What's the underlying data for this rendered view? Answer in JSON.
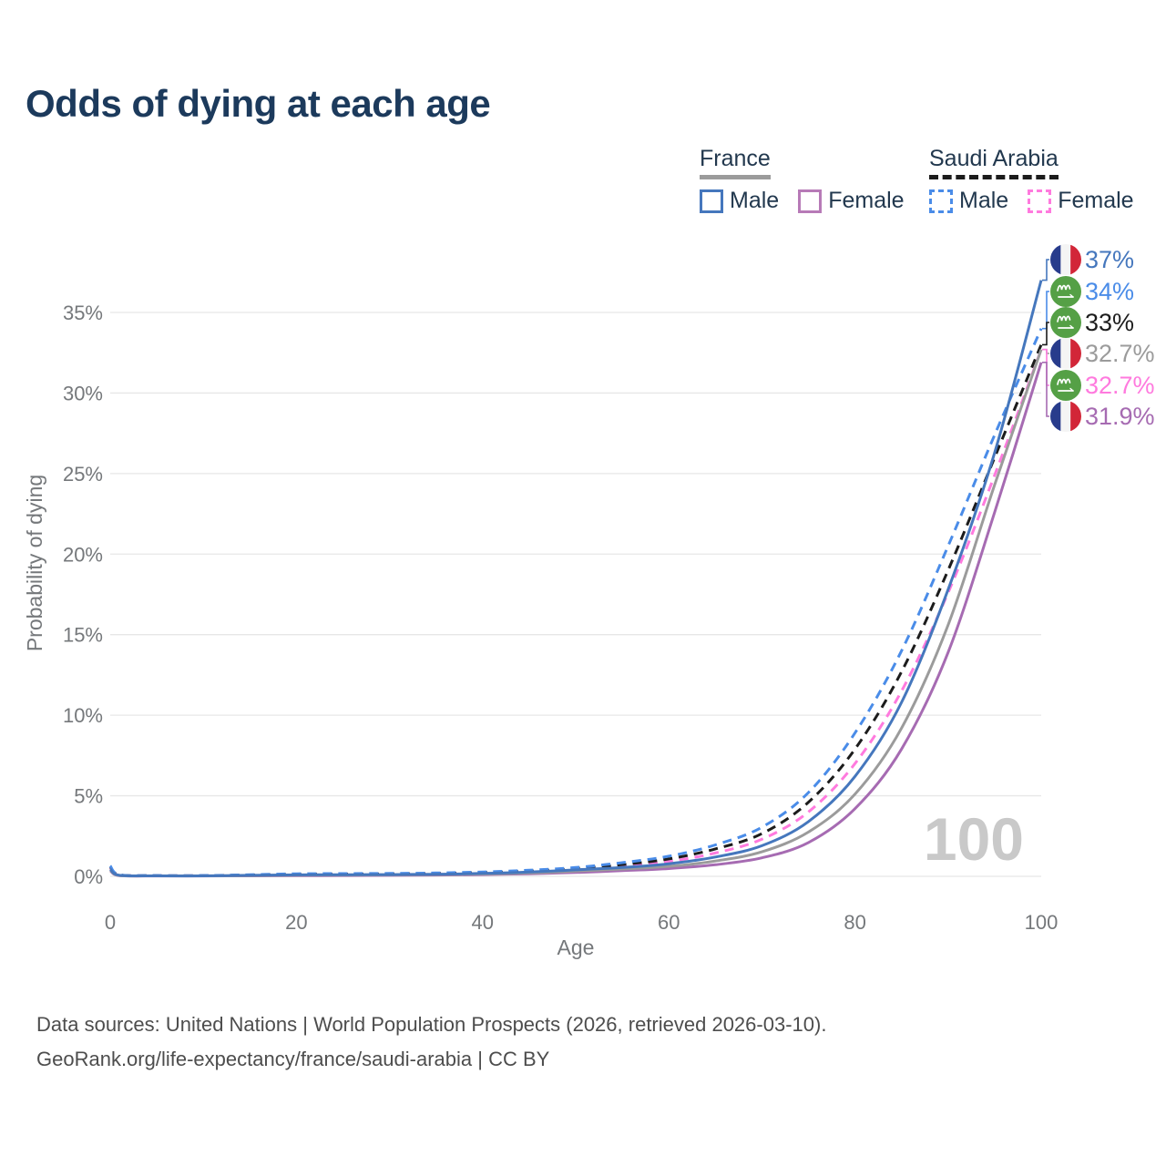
{
  "title": {
    "text": "Odds of dying at each age",
    "color": "#1c3a5c"
  },
  "legend": {
    "groups": [
      {
        "name": "France",
        "line_color": "#9b9b9b",
        "line_dashed": false,
        "items": [
          {
            "label": "Male",
            "color": "#4577bd",
            "dashed": false
          },
          {
            "label": "Female",
            "color": "#b77ab7",
            "dashed": false
          }
        ]
      },
      {
        "name": "Saudi Arabia",
        "line_color": "#1c1c1c",
        "line_dashed": true,
        "items": [
          {
            "label": "Male",
            "color": "#4a8ce8",
            "dashed": true
          },
          {
            "label": "Female",
            "color": "#ff7ade",
            "dashed": true
          }
        ]
      }
    ]
  },
  "chart_data": {
    "type": "line",
    "title": "Odds of dying at each age",
    "xlabel": "Age",
    "ylabel": "Probability of dying",
    "xlim": [
      0,
      100
    ],
    "ylim": [
      0,
      39
    ],
    "unit": "%",
    "grid": "horizontal",
    "legend_position": "top-right",
    "watermark": "100",
    "x_ticks": [
      0,
      20,
      40,
      60,
      80,
      100
    ],
    "y_ticks": [
      {
        "value": 0,
        "label": "0%"
      },
      {
        "value": 5,
        "label": "5%"
      },
      {
        "value": 10,
        "label": "10%"
      },
      {
        "value": 15,
        "label": "15%"
      },
      {
        "value": 20,
        "label": "20%"
      },
      {
        "value": 25,
        "label": "25%"
      },
      {
        "value": 30,
        "label": "30%"
      },
      {
        "value": 35,
        "label": "35%"
      }
    ],
    "style": {
      "grid": "#e7e7e7",
      "tick_text": "#75787b",
      "watermark": "#c9c9c9"
    },
    "ages": [
      0,
      1,
      5,
      10,
      15,
      20,
      25,
      30,
      35,
      40,
      45,
      50,
      55,
      60,
      65,
      70,
      75,
      80,
      85,
      90,
      95,
      100
    ],
    "series": [
      {
        "id": "saudi-arabia-female",
        "name": "Saudi Arabia Female",
        "country": "Saudi Arabia",
        "sex": "Female",
        "color": "#ff7ade",
        "dashed": true,
        "flag": "sa",
        "end_label": "32.7%",
        "end_value": 32.7,
        "label_color": "#ff7ade",
        "slot": 4,
        "values": [
          0.55,
          0.08,
          0.04,
          0.04,
          0.06,
          0.09,
          0.11,
          0.12,
          0.15,
          0.19,
          0.27,
          0.4,
          0.6,
          0.92,
          1.45,
          2.3,
          4.0,
          7.0,
          11.5,
          17.6,
          24.9,
          32.7
        ]
      },
      {
        "id": "saudi-arabia-total",
        "name": "Saudi Arabia Both sexes",
        "country": "Saudi Arabia",
        "sex": "Both",
        "color": "#1c1c1c",
        "dashed": true,
        "flag": "sa",
        "end_label": "33%",
        "end_value": 33.0,
        "label_color": "#1c1c1c",
        "slot": 2,
        "values": [
          0.6,
          0.09,
          0.04,
          0.04,
          0.08,
          0.12,
          0.14,
          0.15,
          0.18,
          0.23,
          0.32,
          0.48,
          0.73,
          1.08,
          1.7,
          2.65,
          4.6,
          7.9,
          12.7,
          19.0,
          26.0,
          33.0
        ]
      },
      {
        "id": "saudi-arabia-male",
        "name": "Saudi Arabia Male",
        "country": "Saudi Arabia",
        "sex": "Male",
        "color": "#4a8ce8",
        "dashed": true,
        "flag": "sa",
        "end_label": "34%",
        "end_value": 34.0,
        "label_color": "#4a8ce8",
        "slot": 1,
        "values": [
          0.65,
          0.1,
          0.05,
          0.05,
          0.1,
          0.16,
          0.17,
          0.18,
          0.21,
          0.27,
          0.38,
          0.55,
          0.85,
          1.25,
          1.95,
          3.05,
          5.2,
          8.9,
          14.0,
          20.5,
          27.4,
          34.0
        ]
      },
      {
        "id": "france-female",
        "name": "France Female",
        "country": "France",
        "sex": "Female",
        "color": "#a66bb2",
        "dashed": false,
        "flag": "fr",
        "end_label": "31.9%",
        "end_value": 31.9,
        "label_color": "#a66bb2",
        "slot": 5,
        "values": [
          0.35,
          0.04,
          0.02,
          0.02,
          0.03,
          0.04,
          0.05,
          0.06,
          0.08,
          0.11,
          0.16,
          0.24,
          0.35,
          0.48,
          0.72,
          1.15,
          2.1,
          4.2,
          7.9,
          13.9,
          22.6,
          31.9
        ]
      },
      {
        "id": "france-total",
        "name": "France Both sexes",
        "country": "France",
        "sex": "Both",
        "color": "#9b9b9b",
        "dashed": false,
        "flag": "fr",
        "end_label": "32.7%",
        "end_value": 32.7,
        "label_color": "#9b9b9b",
        "slot": 3,
        "values": [
          0.4,
          0.05,
          0.03,
          0.03,
          0.04,
          0.07,
          0.08,
          0.09,
          0.11,
          0.14,
          0.21,
          0.32,
          0.45,
          0.62,
          0.95,
          1.52,
          2.75,
          5.1,
          9.2,
          15.6,
          24.3,
          32.7
        ]
      },
      {
        "id": "france-male",
        "name": "France Male",
        "country": "France",
        "sex": "Male",
        "color": "#4577bd",
        "dashed": false,
        "flag": "fr",
        "end_label": "37%",
        "end_value": 37.0,
        "label_color": "#4577bd",
        "slot": 0,
        "values": [
          0.45,
          0.06,
          0.03,
          0.03,
          0.06,
          0.09,
          0.1,
          0.11,
          0.13,
          0.18,
          0.27,
          0.4,
          0.55,
          0.78,
          1.2,
          1.9,
          3.4,
          6.2,
          10.8,
          17.8,
          26.3,
          37.0
        ]
      }
    ]
  },
  "footer": {
    "line1": "Data sources: United Nations | World Population Prospects (2026, retrieved 2026-03-10).",
    "line2": "GeoRank.org/life-expectancy/france/saudi-arabia | CC BY"
  }
}
